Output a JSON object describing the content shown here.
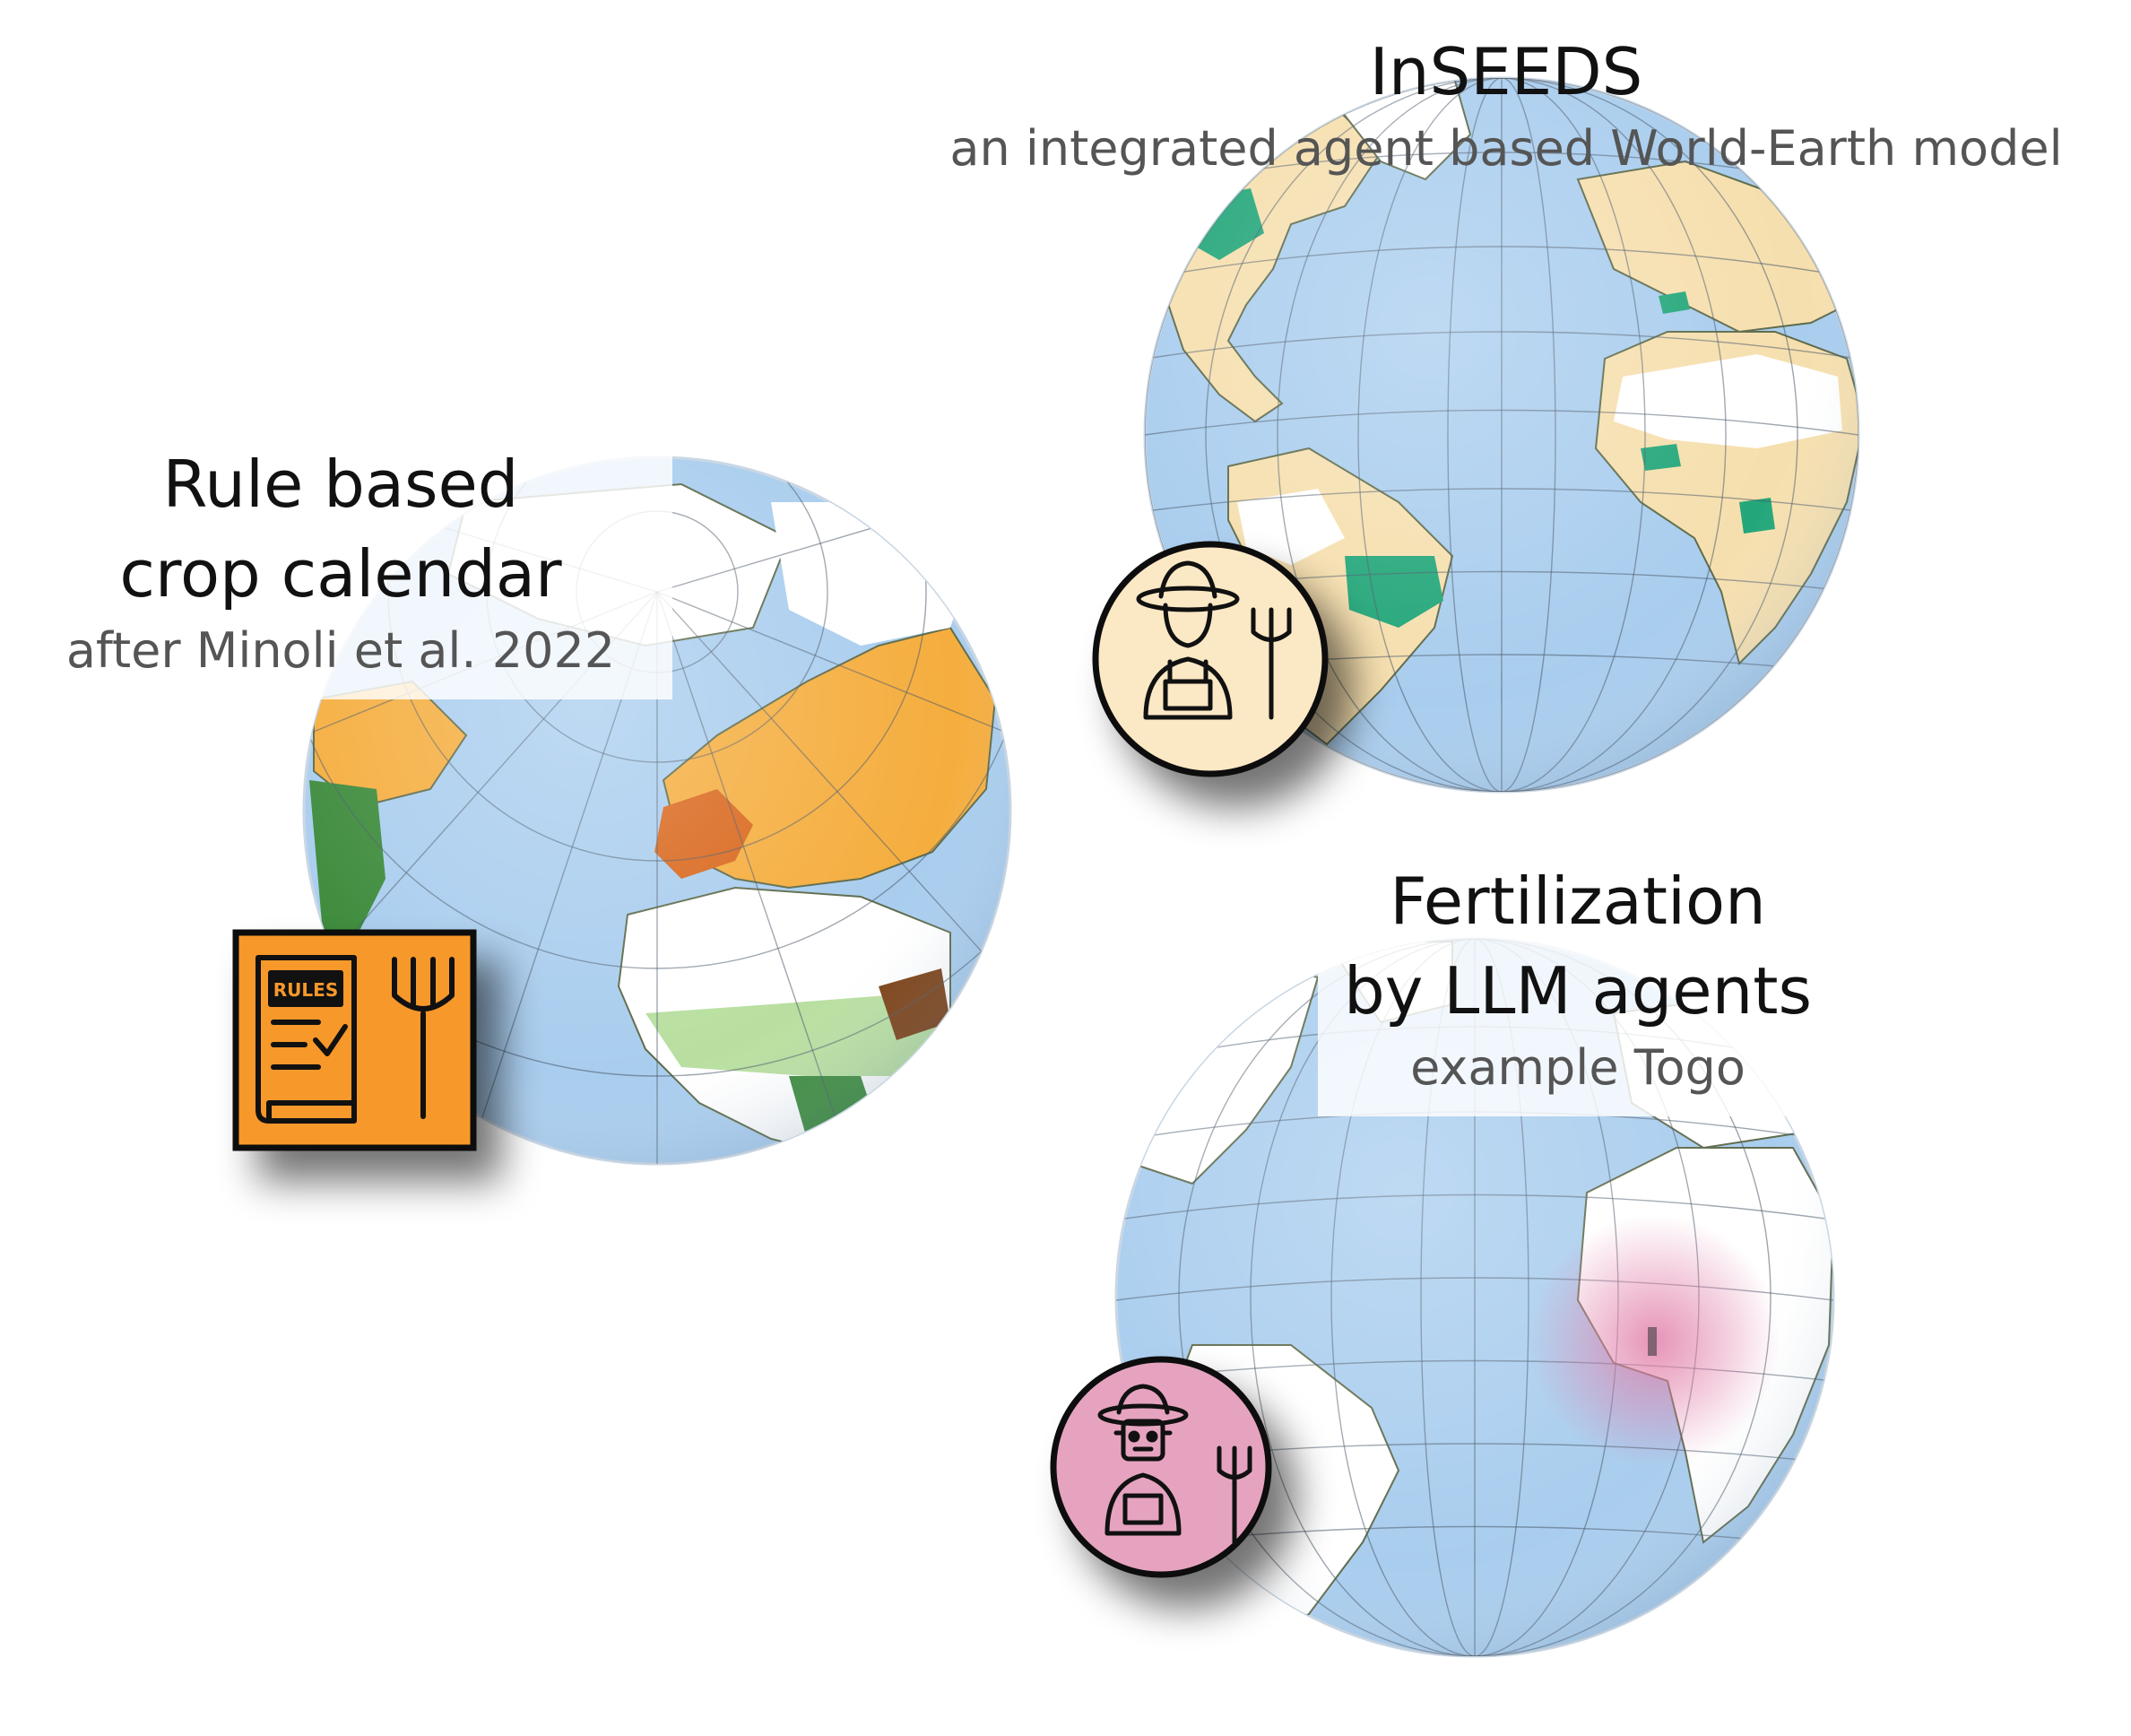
{
  "panels": {
    "inseeds": {
      "title": "InSEEDS",
      "subtitle": "an integrated agent based World-Earth model",
      "icon": "farmer-icon",
      "badge_color": "#fbe8c4"
    },
    "rule_based": {
      "title_line1": "Rule based",
      "title_line2": "crop calendar",
      "subtitle": "after Minoli et al. 2022",
      "icon": "rules-book-icon",
      "icon_text": "RULES",
      "badge_color": "#f7982b"
    },
    "llm": {
      "title_line1": "Fertilization",
      "title_line2": "by LLM agents",
      "subtitle": "example Togo",
      "icon": "robot-farmer-icon",
      "badge_color": "#e6a3bf"
    }
  },
  "colors": {
    "ocean": "#a9cdee",
    "land_inseeds": "#f6dfae",
    "land_green": "#23a679",
    "land_orange": "#f5ad3d",
    "land_darkorange": "#d9661b",
    "land_lightgreen": "#b8dfa0",
    "togo_highlight": "#e07aa6"
  }
}
